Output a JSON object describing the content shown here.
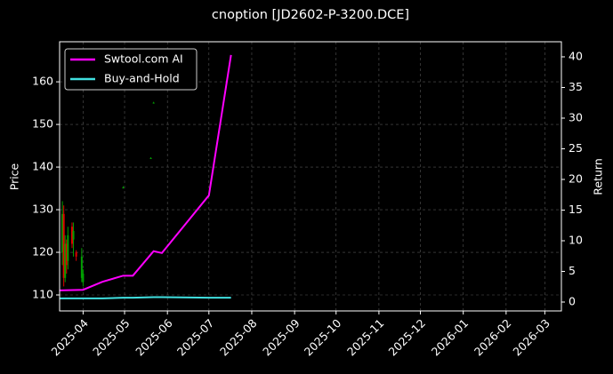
{
  "chart_data": {
    "type": "candlestick",
    "title": "cnoption [JD2602-P-3200.DCE]",
    "ylabel": "Price",
    "y2label": "Return",
    "xlim": [
      "2025-03-15",
      "2026-03-13"
    ],
    "xticks": [
      {
        "value": "2025-04-01",
        "label": "2025-04"
      },
      {
        "value": "2025-05-01",
        "label": "2025-05"
      },
      {
        "value": "2025-06-01",
        "label": "2025-06"
      },
      {
        "value": "2025-07-01",
        "label": "2025-07"
      },
      {
        "value": "2025-08-01",
        "label": "2025-08"
      },
      {
        "value": "2025-09-01",
        "label": "2025-09"
      },
      {
        "value": "2025-10-01",
        "label": "2025-10"
      },
      {
        "value": "2025-11-01",
        "label": "2025-11"
      },
      {
        "value": "2025-12-01",
        "label": "2025-12"
      },
      {
        "value": "2026-01-01",
        "label": "2026-01"
      },
      {
        "value": "2026-02-01",
        "label": "2026-02"
      },
      {
        "value": "2026-03-01",
        "label": "2026-03"
      }
    ],
    "ylim": [
      106.25,
      169.4
    ],
    "yticks": [
      110,
      120,
      130,
      140,
      150,
      160
    ],
    "y2lim": [
      -1.45,
      42.46
    ],
    "y2ticks": [
      0,
      5,
      10,
      15,
      20,
      25,
      30,
      35,
      40
    ],
    "grid": true,
    "legend": "upper left",
    "candles": {
      "up_color": "#00a000",
      "down_color": "#e00000",
      "x": [
        "2025-03-17",
        "2025-03-18",
        "2025-03-19",
        "2025-03-20",
        "2025-03-21",
        "2025-03-24",
        "2025-03-25",
        "2025-03-27",
        "2025-03-31",
        "2025-04-01",
        "2025-04-30",
        "2025-05-20",
        "2025-05-22"
      ],
      "open": [
        120,
        129,
        114,
        122,
        118,
        126,
        123,
        120,
        114,
        113,
        135,
        142,
        155
      ],
      "high": [
        132,
        131,
        124,
        123,
        126,
        127,
        127,
        120.5,
        121,
        116,
        135.5,
        142.3,
        155.3
      ],
      "low": [
        117,
        112,
        113,
        115,
        116,
        121,
        119,
        118,
        113,
        112,
        135,
        142,
        155
      ],
      "close": [
        129,
        114,
        122,
        117,
        124,
        122,
        125,
        119,
        119,
        115,
        135.2,
        142.1,
        155.1
      ]
    },
    "x": [
      "2025-03-15",
      "2025-04-01",
      "2025-04-15",
      "2025-04-30",
      "2025-05-07",
      "2025-05-22",
      "2025-05-28",
      "2025-07-01",
      "2025-07-17"
    ],
    "series": [
      {
        "name": "Swtool.com AI",
        "color": "#ff00ff",
        "axis": "y2",
        "values": [
          1.9,
          2.0,
          3.3,
          4.3,
          4.3,
          8.3,
          8.0,
          17.4,
          40.3
        ]
      },
      {
        "name": "Buy-and-Hold",
        "color": "#40e0e0",
        "axis": "y2",
        "values": [
          0.6,
          0.6,
          0.6,
          0.7,
          0.7,
          0.8,
          0.8,
          0.7,
          0.7
        ]
      }
    ]
  }
}
